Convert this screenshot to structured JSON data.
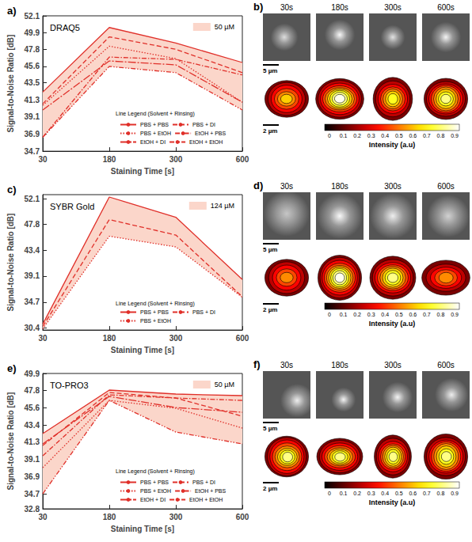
{
  "chart_data": [
    {
      "type": "line",
      "panel_label": "a)",
      "title": "DRAQ5",
      "legend_title": "Line Legend (Solvent + Rinsing)",
      "band": {
        "label": "50 µM",
        "color": "#fbd6ca"
      },
      "x_label": "Staining Time [s]",
      "y_label": "Signal-to-Noise Ratio [dB]",
      "categories": [
        "30",
        "180",
        "300",
        "600"
      ],
      "ylim": [
        34.7,
        52.1
      ],
      "yticks": [
        34.7,
        36.9,
        39.1,
        41.3,
        43.5,
        45.6,
        47.8,
        49.9,
        52.1
      ],
      "grid": false,
      "legend": "bottom",
      "series": [
        {
          "name": "PBS + PBS",
          "color": "#e0302a",
          "line_style": "solid",
          "values": [
            42.3,
            50.6,
            48.6,
            46.1
          ]
        },
        {
          "name": "PBS + DI",
          "color": "#e0302a",
          "line_style": "dashed",
          "values": [
            40.8,
            49.4,
            47.8,
            44.8
          ]
        },
        {
          "name": "PBS + EtOH",
          "color": "#e0302a",
          "line_style": "dotted",
          "values": [
            40.6,
            48.2,
            46.6,
            41.0
          ]
        },
        {
          "name": "EtOH + PBS",
          "color": "#e0302a",
          "line_style": "dashdot",
          "values": [
            36.5,
            46.8,
            46.5,
            44.5
          ]
        },
        {
          "name": "EtOH + DI",
          "color": "#e0302a",
          "line_style": "longdashdot",
          "values": [
            40.0,
            46.3,
            45.8,
            41.0
          ]
        },
        {
          "name": "EtOH + EtOH",
          "color": "#e0302a",
          "line_style": "dashdotdot",
          "values": [
            36.5,
            45.6,
            44.8,
            40.0
          ]
        }
      ]
    },
    {
      "type": "line",
      "panel_label": "c)",
      "title": "SYBR Gold",
      "legend_title": "Line Legend (Solvent + Rinsing)",
      "band": {
        "label": "124 µM",
        "color": "#fbd6ca"
      },
      "x_label": "Staining Time [s]",
      "y_label": "Signal-to-Noise Ratio [dB]",
      "categories": [
        "30",
        "180",
        "300",
        "600"
      ],
      "ylim": [
        30.0,
        52.8
      ],
      "yticks": [
        30.4,
        34.7,
        39.1,
        43.4,
        47.8,
        52.1
      ],
      "grid": false,
      "legend": "bottom",
      "series": [
        {
          "name": "PBS + PBS",
          "color": "#e0302a",
          "line_style": "solid",
          "values": [
            31.0,
            52.4,
            49.0,
            38.5
          ]
        },
        {
          "name": "PBS + DI",
          "color": "#e0302a",
          "line_style": "dashed",
          "values": [
            30.6,
            48.6,
            46.0,
            35.6
          ]
        },
        {
          "name": "PBS + EtOH",
          "color": "#e0302a",
          "line_style": "dotted",
          "values": [
            30.2,
            45.8,
            44.0,
            35.5
          ]
        }
      ]
    },
    {
      "type": "line",
      "panel_label": "e)",
      "title": "TO-PRO3",
      "legend_title": "Line Legend (Solvent + Rinsing)",
      "band": {
        "label": "50 µM",
        "color": "#fbd6ca"
      },
      "x_label": "Staining Time [s]",
      "y_label": "Signal-to-Noise Ratio [dB]",
      "categories": [
        "30",
        "180",
        "300",
        "600"
      ],
      "ylim": [
        32.8,
        49.9
      ],
      "yticks": [
        32.8,
        34.7,
        36.9,
        39.1,
        41.3,
        43.4,
        45.6,
        47.8,
        49.9
      ],
      "grid": false,
      "legend": "bottom",
      "series": [
        {
          "name": "PBS + PBS",
          "color": "#e0302a",
          "line_style": "solid",
          "values": [
            42.3,
            47.8,
            47.3,
            47.1
          ]
        },
        {
          "name": "PBS + DI",
          "color": "#e0302a",
          "line_style": "dashed",
          "values": [
            40.8,
            47.5,
            46.8,
            44.5
          ]
        },
        {
          "name": "PBS + EtOH",
          "color": "#e0302a",
          "line_style": "dotted",
          "values": [
            38.0,
            46.5,
            45.5,
            43.0
          ]
        },
        {
          "name": "EtOH + PBS",
          "color": "#e0302a",
          "line_style": "dashdot",
          "values": [
            39.5,
            47.2,
            46.8,
            46.5
          ]
        },
        {
          "name": "EtOH + DI",
          "color": "#e0302a",
          "line_style": "longdashdot",
          "values": [
            41.0,
            47.0,
            45.6,
            45.0
          ]
        },
        {
          "name": "EtOH + EtOH",
          "color": "#e0302a",
          "line_style": "dashdotdot",
          "values": [
            34.7,
            46.5,
            42.5,
            41.0
          ]
        }
      ]
    }
  ],
  "image_panels": [
    {
      "panel_label": "b)",
      "times": [
        "30s",
        "180s",
        "300s",
        "600s"
      ],
      "scale_bars": [
        "5 µm",
        "2 µm"
      ],
      "colorbar_label": "Intensity (a.u)",
      "colorbar_ticks": [
        0,
        0.1,
        0.2,
        0.3,
        0.4,
        0.5,
        0.6,
        0.7,
        0.8,
        0.9
      ]
    },
    {
      "panel_label": "d)",
      "times": [
        "30s",
        "180s",
        "300s",
        "600s"
      ],
      "scale_bars": [
        "5 µm",
        "2 µm"
      ],
      "colorbar_label": "Intensity (a.u)",
      "colorbar_ticks": [
        0,
        0.1,
        0.2,
        0.3,
        0.4,
        0.5,
        0.6,
        0.7,
        0.8,
        0.9
      ]
    },
    {
      "panel_label": "f)",
      "times": [
        "30s",
        "180s",
        "300s",
        "600s"
      ],
      "scale_bars": [
        "5 µm",
        "2 µm"
      ],
      "colorbar_label": "Intensity (a.u)",
      "colorbar_ticks": [
        0,
        0.1,
        0.2,
        0.3,
        0.4,
        0.5,
        0.6,
        0.7,
        0.8,
        0.9
      ]
    }
  ]
}
